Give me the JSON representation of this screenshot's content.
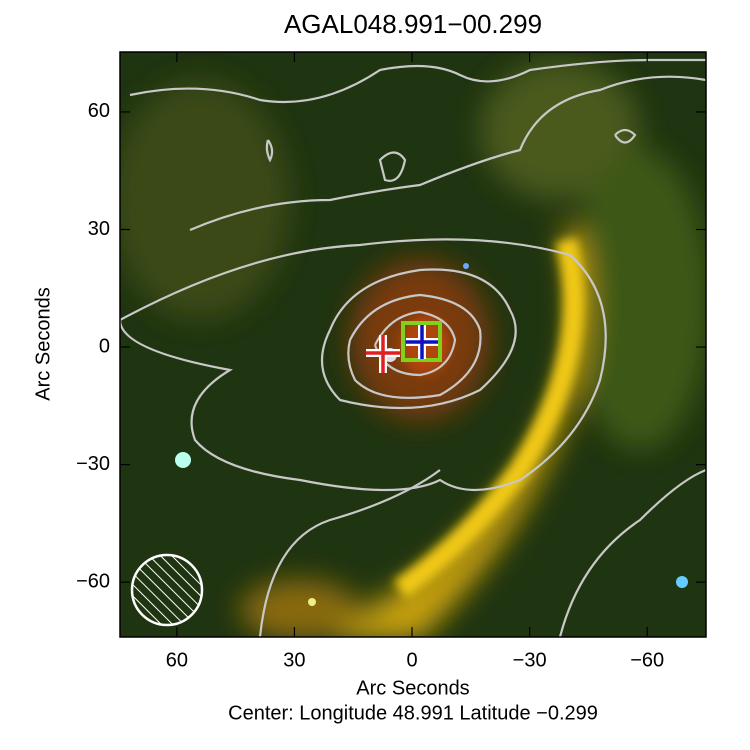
{
  "chart_data": {
    "type": "image",
    "title": "AGAL048.991−00.299",
    "xlabel": "Arc Seconds",
    "ylabel": "Arc Seconds",
    "footer": "Center:  Longitude 48.991 Latitude −0.299",
    "xlim": [
      74.5,
      -75
    ],
    "ylim": [
      -74,
      75.3
    ],
    "xticks": [
      60,
      30,
      0,
      {
        "value": -30,
        "label": "−30"
      },
      {
        "value": -60,
        "label": "−60"
      }
    ],
    "yticks": [
      60,
      30,
      0,
      {
        "value": -30,
        "label": "−30"
      },
      {
        "value": -60,
        "label": "−60"
      }
    ]
  }
}
